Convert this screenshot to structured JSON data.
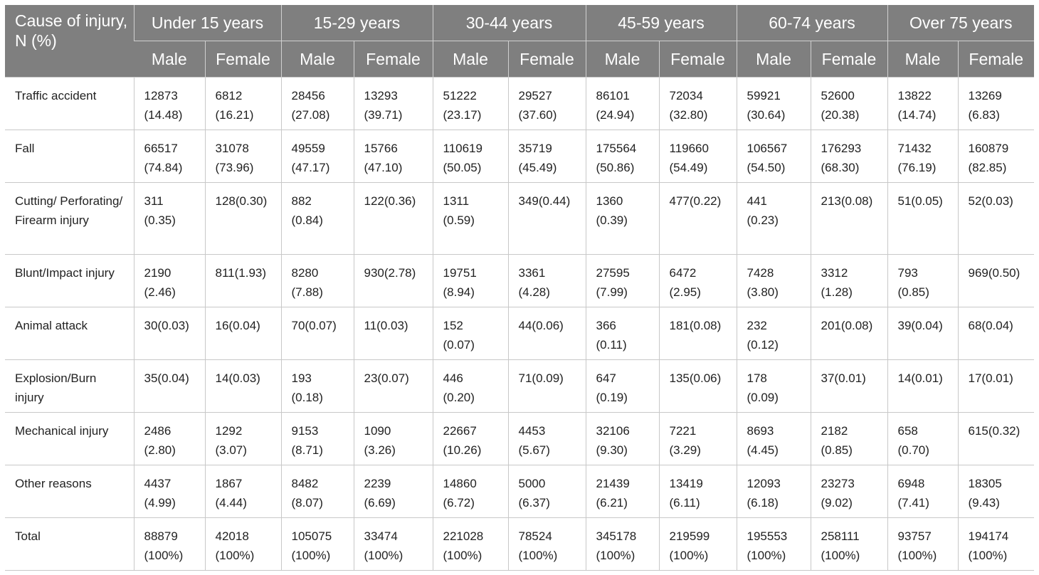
{
  "header": {
    "cause_label": "Cause of injury, N (%)",
    "age_groups": [
      "Under 15 years",
      "15-29 years",
      "30-44 years",
      "45-59 years",
      "60-74 years",
      "Over 75 years"
    ],
    "male_label": "Male",
    "female_label": "Female"
  },
  "rows": [
    {
      "cause": "Traffic accident",
      "cells": [
        [
          "12873",
          "(14.48)"
        ],
        [
          "6812",
          "(16.21)"
        ],
        [
          "28456",
          "(27.08)"
        ],
        [
          "13293",
          "(39.71)"
        ],
        [
          "51222",
          "(23.17)"
        ],
        [
          "29527",
          "(37.60)"
        ],
        [
          "86101",
          "(24.94)"
        ],
        [
          "72034",
          "(32.80)"
        ],
        [
          "59921",
          "(30.64)"
        ],
        [
          "52600",
          "(20.38)"
        ],
        [
          "13822",
          "(14.74)"
        ],
        [
          "13269",
          "(6.83)"
        ]
      ]
    },
    {
      "cause": "Fall",
      "cells": [
        [
          "66517",
          "(74.84)"
        ],
        [
          "31078",
          "(73.96)"
        ],
        [
          "49559",
          "(47.17)"
        ],
        [
          "15766",
          "(47.10)"
        ],
        [
          "110619",
          "(50.05)"
        ],
        [
          "35719",
          "(45.49)"
        ],
        [
          "175564",
          "(50.86)"
        ],
        [
          "119660",
          "(54.49)"
        ],
        [
          "106567",
          "(54.50)"
        ],
        [
          "176293",
          "(68.30)"
        ],
        [
          "71432",
          "(76.19)"
        ],
        [
          "160879",
          "(82.85)"
        ]
      ]
    },
    {
      "cause": "Cutting/ Perforating/ Firearm injury",
      "cells": [
        [
          "311",
          "(0.35)"
        ],
        [
          "128(0.30)",
          ""
        ],
        [
          "882",
          "(0.84)"
        ],
        [
          "122(0.36)",
          ""
        ],
        [
          "1311",
          "(0.59)"
        ],
        [
          "349(0.44)",
          ""
        ],
        [
          "1360",
          "(0.39)"
        ],
        [
          "477(0.22)",
          ""
        ],
        [
          "441",
          "(0.23)"
        ],
        [
          "213(0.08)",
          ""
        ],
        [
          "51(0.05)",
          ""
        ],
        [
          "52(0.03)",
          ""
        ]
      ]
    },
    {
      "cause": "Blunt/Impact injury",
      "cells": [
        [
          "2190",
          "(2.46)"
        ],
        [
          "811(1.93)",
          ""
        ],
        [
          "8280",
          "(7.88)"
        ],
        [
          "930(2.78)",
          ""
        ],
        [
          "19751",
          "(8.94)"
        ],
        [
          "3361",
          "(4.28)"
        ],
        [
          "27595",
          "(7.99)"
        ],
        [
          "6472",
          "(2.95)"
        ],
        [
          "7428",
          "(3.80)"
        ],
        [
          "3312",
          "(1.28)"
        ],
        [
          "793",
          "(0.85)"
        ],
        [
          "969(0.50)",
          ""
        ]
      ]
    },
    {
      "cause": "Animal attack",
      "cells": [
        [
          "30(0.03)",
          ""
        ],
        [
          "16(0.04)",
          ""
        ],
        [
          "70(0.07)",
          ""
        ],
        [
          "11(0.03)",
          ""
        ],
        [
          "152",
          "(0.07)"
        ],
        [
          "44(0.06)",
          ""
        ],
        [
          "366",
          "(0.11)"
        ],
        [
          "181(0.08)",
          ""
        ],
        [
          "232",
          "(0.12)"
        ],
        [
          "201(0.08)",
          ""
        ],
        [
          "39(0.04)",
          ""
        ],
        [
          "68(0.04)",
          ""
        ]
      ]
    },
    {
      "cause": "Explosion/Burn injury",
      "cells": [
        [
          "35(0.04)",
          ""
        ],
        [
          "14(0.03)",
          ""
        ],
        [
          "193",
          "(0.18)"
        ],
        [
          "23(0.07)",
          ""
        ],
        [
          "446",
          "(0.20)"
        ],
        [
          "71(0.09)",
          ""
        ],
        [
          "647",
          "(0.19)"
        ],
        [
          "135(0.06)",
          ""
        ],
        [
          "178",
          "(0.09)"
        ],
        [
          "37(0.01)",
          ""
        ],
        [
          "14(0.01)",
          ""
        ],
        [
          "17(0.01)",
          ""
        ]
      ]
    },
    {
      "cause": "Mechanical injury",
      "cells": [
        [
          "2486",
          "(2.80)"
        ],
        [
          "1292",
          "(3.07)"
        ],
        [
          "9153",
          "(8.71)"
        ],
        [
          "1090",
          "(3.26)"
        ],
        [
          "22667",
          "(10.26)"
        ],
        [
          "4453",
          "(5.67)"
        ],
        [
          "32106",
          "(9.30)"
        ],
        [
          "7221",
          "(3.29)"
        ],
        [
          "8693",
          "(4.45)"
        ],
        [
          "2182",
          "(0.85)"
        ],
        [
          "658",
          "(0.70)"
        ],
        [
          "615(0.32)",
          ""
        ]
      ]
    },
    {
      "cause": "Other reasons",
      "cells": [
        [
          "4437",
          "(4.99)"
        ],
        [
          "1867",
          "(4.44)"
        ],
        [
          "8482",
          "(8.07)"
        ],
        [
          "2239",
          "(6.69)"
        ],
        [
          "14860",
          "(6.72)"
        ],
        [
          "5000",
          "(6.37)"
        ],
        [
          "21439",
          "(6.21)"
        ],
        [
          "13419",
          "(6.11)"
        ],
        [
          "12093",
          "(6.18)"
        ],
        [
          "23273",
          "(9.02)"
        ],
        [
          "6948",
          "(7.41)"
        ],
        [
          "18305",
          "(9.43)"
        ]
      ]
    },
    {
      "cause": "Total",
      "cells": [
        [
          "88879",
          "(100%)"
        ],
        [
          "42018",
          "(100%)"
        ],
        [
          "105075",
          "(100%)"
        ],
        [
          "33474",
          "(100%)"
        ],
        [
          "221028",
          "(100%)"
        ],
        [
          "78524",
          "(100%)"
        ],
        [
          "345178",
          "(100%)"
        ],
        [
          "219599",
          "(100%)"
        ],
        [
          "195553",
          "(100%)"
        ],
        [
          "258111",
          "(100%)"
        ],
        [
          "93757",
          "(100%)"
        ],
        [
          "194174",
          "(100%)"
        ]
      ]
    }
  ]
}
